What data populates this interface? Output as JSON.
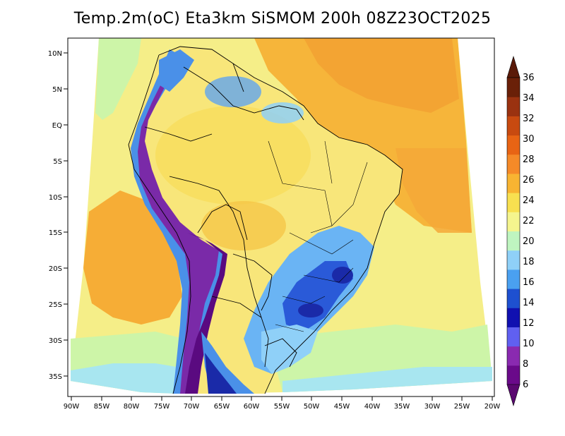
{
  "title": "Temp.2m(oC) Eta3km SiSMOM 200h 08Z23OCT2025",
  "axes": {
    "lat_labels": [
      "10N",
      "5N",
      "EQ",
      "5S",
      "10S",
      "15S",
      "20S",
      "25S",
      "30S",
      "35S"
    ],
    "lon_labels": [
      "90W",
      "85W",
      "80W",
      "75W",
      "70W",
      "65W",
      "60W",
      "55W",
      "50W",
      "45W",
      "40W",
      "35W",
      "30W",
      "25W",
      "20W"
    ]
  },
  "colorbar": {
    "labels": [
      "36",
      "34",
      "32",
      "30",
      "28",
      "26",
      "24",
      "22",
      "20",
      "18",
      "16",
      "14",
      "12",
      "10",
      "8",
      "6"
    ],
    "bins": [
      {
        "value": "6-8",
        "color": "#6a0a8a"
      },
      {
        "value": "8-10",
        "color": "#8a2ab0"
      },
      {
        "value": "10-12",
        "color": "#6060f0"
      },
      {
        "value": "12-14",
        "color": "#1010b0"
      },
      {
        "value": "14-16",
        "color": "#1e50d0"
      },
      {
        "value": "16-18",
        "color": "#4aa0f0"
      },
      {
        "value": "18-20",
        "color": "#8fd0f8"
      },
      {
        "value": "20-22",
        "color": "#bff5c0"
      },
      {
        "value": "22-24",
        "color": "#f5f58e"
      },
      {
        "value": "24-26",
        "color": "#f8e050"
      },
      {
        "value": "26-28",
        "color": "#f8b432"
      },
      {
        "value": "28-30",
        "color": "#f58a28"
      },
      {
        "value": "30-32",
        "color": "#e86414"
      },
      {
        "value": "32-34",
        "color": "#c84a10"
      },
      {
        "value": "34-36",
        "color": "#9a3210"
      },
      {
        "value": ">36",
        "color": "#6a2008"
      }
    ],
    "under_color": "#5a0870",
    "over_color": "#5a1a08"
  }
}
